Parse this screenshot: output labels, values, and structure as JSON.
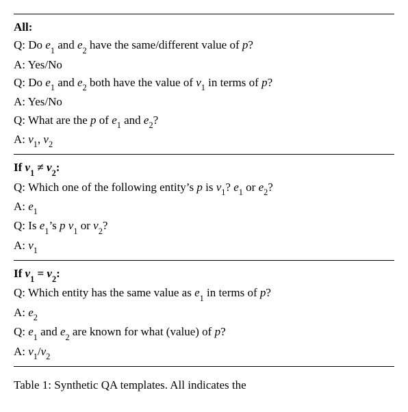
{
  "colors": {
    "text": "#000000",
    "background": "#ffffff",
    "rule": "#000000"
  },
  "font": {
    "family": "Times New Roman",
    "size_pt": 12,
    "line_height": 1.55
  },
  "blocks": [
    {
      "heading": "All:",
      "items": [
        {
          "q": "Q: Do {e1} and {e2} have the same/different value of {p}?",
          "a": "A: Yes/No"
        },
        {
          "q": "Q: Do {e1} and {e2} both have the value of {v1} in terms of {p}?",
          "a": "A: Yes/No"
        },
        {
          "q": "Q: What are the {p} of {e1} and {e2}?",
          "a": "A: {v1}, {v2}"
        }
      ]
    },
    {
      "heading": "If {v1} ≠ {v2}:",
      "items": [
        {
          "q": "Q: Which one of the following entity’s {p} is {v1}? {e1} or {e2}?",
          "a": "A: {e1}"
        },
        {
          "q": "Q: Is {e1}’s {p} {v1} or {v2}?",
          "a": "A: {v1}"
        }
      ]
    },
    {
      "heading": "If {v1} = {v2}:",
      "items": [
        {
          "q": "Q: Which entity has the same value as {e1} in terms of {p}?",
          "a": "A: {e2}"
        },
        {
          "q": "Q: {e1} and {e2} are known for what (value) of {p}?",
          "a": "A: {v1}/{v2}"
        }
      ]
    }
  ],
  "symbols": {
    "e1": {
      "base": "e",
      "sub": "1"
    },
    "e2": {
      "base": "e",
      "sub": "2"
    },
    "v1": {
      "base": "v",
      "sub": "1"
    },
    "v2": {
      "base": "v",
      "sub": "2"
    },
    "p": {
      "base": "p",
      "sub": null
    }
  },
  "caption_prefix": "Table 1:  Synthetic QA templates.  All indicates the"
}
